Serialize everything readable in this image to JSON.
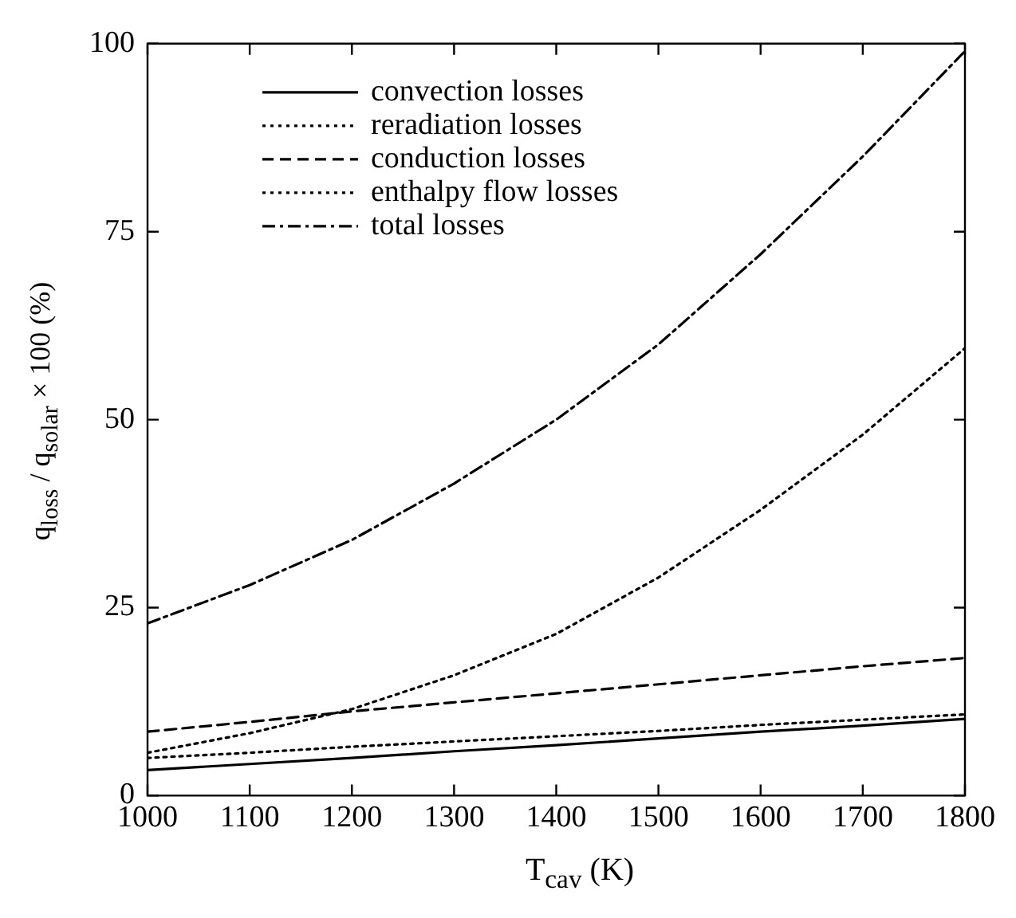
{
  "chart_data": {
    "type": "line",
    "xlabel": "T$_{cav}$ (K)",
    "ylabel": "q$_{loss}$ / q$_{solar}$ × 100 (%)",
    "x": [
      1000,
      1100,
      1200,
      1300,
      1400,
      1500,
      1600,
      1700,
      1800
    ],
    "xlim": [
      1000,
      1800
    ],
    "xticks": [
      1000,
      1100,
      1200,
      1300,
      1400,
      1500,
      1600,
      1700,
      1800
    ],
    "ylim": [
      0,
      100
    ],
    "yticks": [
      0,
      25,
      50,
      75,
      100
    ],
    "grid": false,
    "legend": "top left",
    "marker": "none",
    "series": [
      {
        "name": "convection losses",
        "color": "#000000",
        "line_style": "solid",
        "values": [
          3.4,
          4.2,
          5.0,
          5.9,
          6.7,
          7.6,
          8.5,
          9.3,
          10.2
        ]
      },
      {
        "name": "reradiation losses",
        "color": "#000000",
        "line_style": "dotted",
        "values": [
          5.7,
          8.3,
          11.5,
          16,
          21.5,
          29,
          38,
          48,
          59.5
        ]
      },
      {
        "name": "conduction losses",
        "color": "#000000",
        "line_style": "dashed",
        "values": [
          8.5,
          9.8,
          11.2,
          12.4,
          13.6,
          14.8,
          16.0,
          17.2,
          18.3
        ]
      },
      {
        "name": "enthalpy flow losses",
        "color": "#000000",
        "line_style": "dotted",
        "values": [
          5.0,
          5.7,
          6.5,
          7.2,
          7.9,
          8.6,
          9.4,
          10.1,
          10.8
        ]
      },
      {
        "name": "total losses",
        "color": "#000000",
        "line_style": "dashdot",
        "values": [
          22.9,
          28,
          34,
          41.5,
          50,
          60,
          72,
          85,
          99
        ]
      }
    ]
  }
}
